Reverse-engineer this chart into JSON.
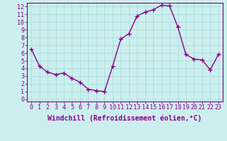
{
  "x": [
    0,
    1,
    2,
    3,
    4,
    5,
    6,
    7,
    8,
    9,
    10,
    11,
    12,
    13,
    14,
    15,
    16,
    17,
    18,
    19,
    20,
    21,
    22,
    23
  ],
  "y": [
    6.5,
    4.3,
    3.5,
    3.2,
    3.4,
    2.7,
    2.2,
    1.3,
    1.1,
    1.0,
    4.3,
    7.8,
    8.5,
    10.8,
    11.3,
    11.6,
    12.2,
    12.1,
    9.4,
    5.8,
    5.2,
    5.1,
    3.8,
    5.8
  ],
  "line_color": "#880088",
  "marker": "+",
  "marker_size": 4,
  "marker_linewidth": 1.0,
  "bg_color": "#cceeee",
  "grid_color": "#aadddd",
  "xlabel": "Windchill (Refroidissement éolien,°C)",
  "xlim_min": -0.5,
  "xlim_max": 23.5,
  "ylim_min": -0.3,
  "ylim_max": 12.5,
  "xticks": [
    0,
    1,
    2,
    3,
    4,
    5,
    6,
    7,
    8,
    9,
    10,
    11,
    12,
    13,
    14,
    15,
    16,
    17,
    18,
    19,
    20,
    21,
    22,
    23
  ],
  "yticks": [
    0,
    1,
    2,
    3,
    4,
    5,
    6,
    7,
    8,
    9,
    10,
    11,
    12
  ],
  "tick_color": "#880088",
  "label_color": "#880088",
  "axis_color": "#880088",
  "tick_fontsize": 6.0,
  "xlabel_fontsize": 7.0,
  "linewidth": 1.0
}
